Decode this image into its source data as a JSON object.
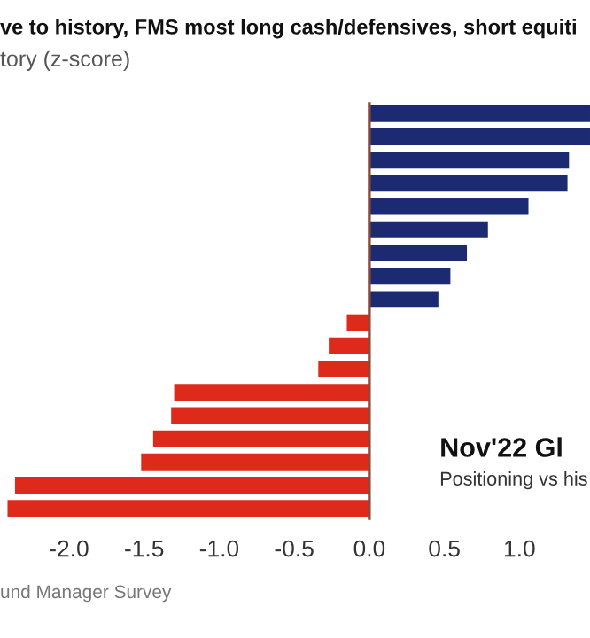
{
  "chart_data": {
    "type": "bar",
    "orientation": "horizontal",
    "title": "ve to history, FMS most long cash/defensives, short equiti",
    "subtitle": "tory (z-score)",
    "categories": [
      null,
      null,
      null,
      null,
      null,
      null,
      null,
      null,
      null,
      null,
      null,
      null,
      null,
      null,
      null,
      null,
      null,
      null
    ],
    "values": [
      1.47,
      1.47,
      1.33,
      1.32,
      1.06,
      0.79,
      0.65,
      0.54,
      0.46,
      -0.15,
      -0.27,
      -0.34,
      -1.3,
      -1.32,
      -1.44,
      -1.52,
      -2.36,
      -2.41
    ],
    "colors": [
      "#1c2a72",
      "#1c2a72",
      "#1c2a72",
      "#1c2a72",
      "#1c2a72",
      "#1c2a72",
      "#1c2a72",
      "#1c2a72",
      "#1c2a72",
      "#de2a1a",
      "#de2a1a",
      "#de2a1a",
      "#de2a1a",
      "#de2a1a",
      "#de2a1a",
      "#de2a1a",
      "#de2a1a",
      "#de2a1a"
    ],
    "xlim": [
      -2.46,
      1.47
    ],
    "xticks": [
      {
        "value": -2.0,
        "label": "-2.0"
      },
      {
        "value": -1.5,
        "label": "-1.5"
      },
      {
        "value": -1.0,
        "label": "-1.0"
      },
      {
        "value": -0.5,
        "label": "-0.5"
      },
      {
        "value": 0.0,
        "label": "0.0"
      },
      {
        "value": 0.5,
        "label": "0.5"
      },
      {
        "value": 1.0,
        "label": "1.0"
      }
    ],
    "tick_labels": "x",
    "grid": false,
    "ref_lines": [
      {
        "axis": "x",
        "value": 0,
        "color": "#8a4a3a"
      }
    ],
    "annotations": [
      "Nov'22 Gl",
      "Positioning vs his",
      "und Manager Survey"
    ]
  }
}
